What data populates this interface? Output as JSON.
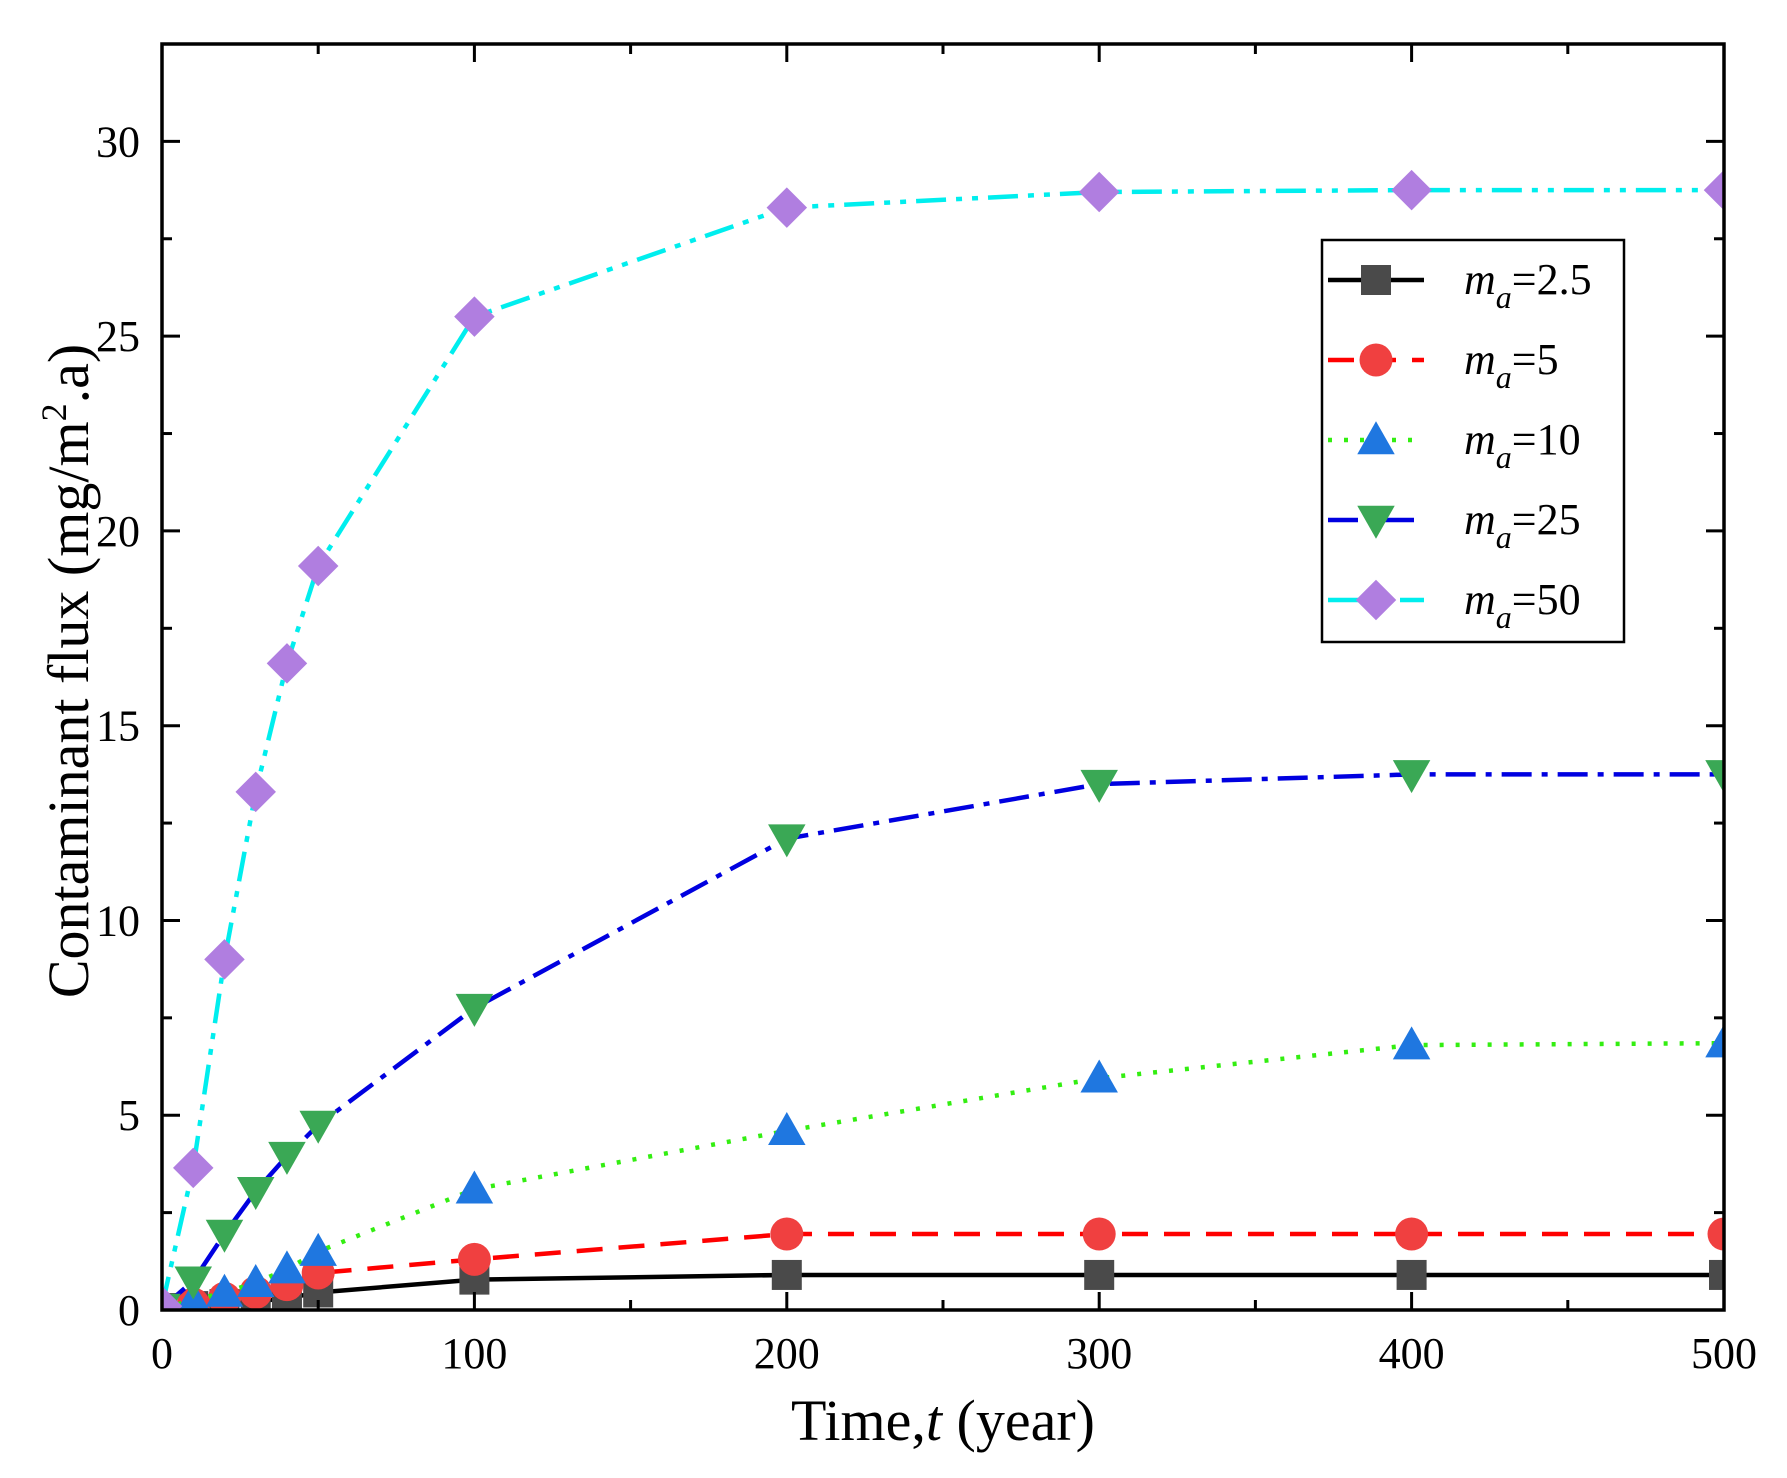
{
  "chart_data": {
    "type": "line",
    "title": "",
    "xlabel": {
      "prefix": "Time,",
      "var": "t",
      "suffix": " (year)"
    },
    "ylabel": {
      "base": "Contaminant flux (mg/m",
      "sup": "2",
      "tail": ".a)"
    },
    "xlim": [
      0,
      500
    ],
    "ylim": [
      0,
      32.5
    ],
    "xticks": [
      0,
      100,
      200,
      300,
      400,
      500
    ],
    "yticks": [
      0,
      5,
      10,
      15,
      20,
      25,
      30
    ],
    "x": [
      0,
      10,
      20,
      30,
      40,
      50,
      100,
      200,
      300,
      400,
      500
    ],
    "legend_position": "upper-right",
    "series": [
      {
        "name_var": "m",
        "name_sub": "a",
        "name_val": "=2.5",
        "color": "#000000",
        "marker": "square",
        "marker_color": "#4a4a4a",
        "dash": "",
        "values": [
          0.05,
          0.1,
          0.15,
          0.22,
          0.3,
          0.45,
          0.78,
          0.9,
          0.9,
          0.9,
          0.9
        ]
      },
      {
        "name_var": "m",
        "name_sub": "a",
        "name_val": "=5",
        "color": "#ff0000",
        "marker": "circle",
        "marker_color": "#f04040",
        "dash": "26,16",
        "values": [
          0.05,
          0.15,
          0.3,
          0.45,
          0.65,
          0.95,
          1.3,
          1.95,
          1.95,
          1.95,
          1.95
        ]
      },
      {
        "name_var": "m",
        "name_sub": "a",
        "name_val": "=10",
        "color": "#33ee11",
        "marker": "triangle-up",
        "marker_color": "#1f77e0",
        "dash": "4,12",
        "values": [
          0.05,
          0.25,
          0.45,
          0.7,
          1.05,
          1.5,
          3.1,
          4.6,
          5.95,
          6.8,
          6.85
        ]
      },
      {
        "name_var": "m",
        "name_sub": "a",
        "name_val": "=25",
        "color": "#0000e0",
        "marker": "triangle-down",
        "marker_color": "#3aa855",
        "dash": "30,10,6,10",
        "values": [
          0.05,
          0.75,
          1.95,
          3.05,
          3.95,
          4.75,
          7.75,
          12.1,
          13.5,
          13.75,
          13.75
        ]
      },
      {
        "name_var": "m",
        "name_sub": "a",
        "name_val": "=50",
        "color": "#00eeee",
        "marker": "diamond",
        "marker_color": "#b07ee0",
        "dash": "30,10,6,10,6,10",
        "values": [
          0.1,
          3.65,
          9.0,
          13.3,
          16.6,
          19.1,
          25.5,
          28.3,
          28.7,
          28.75,
          28.75
        ]
      }
    ]
  }
}
